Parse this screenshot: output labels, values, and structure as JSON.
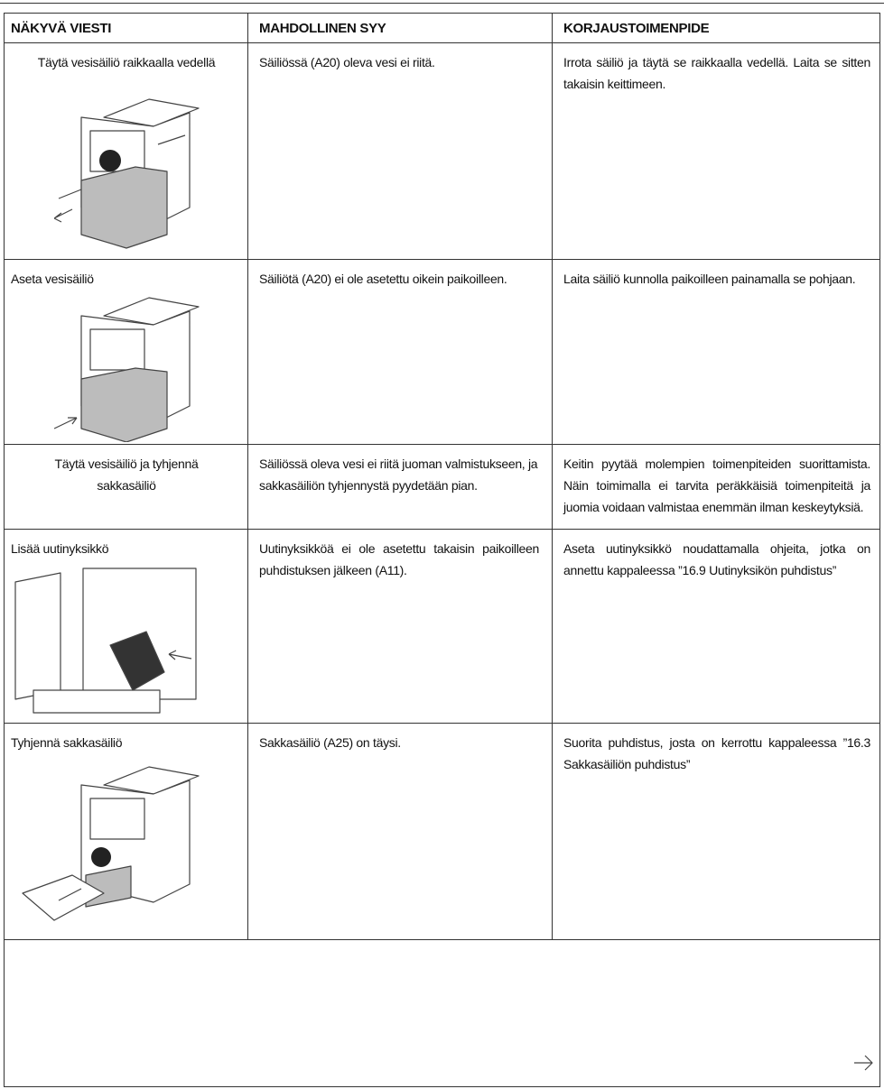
{
  "table": {
    "header": [
      "NÄKYVÄ VIESTI",
      "MAHDOLLINEN SYY",
      "KORJAUSTOIMENPIDE"
    ],
    "rows": [
      [
        "Täytä vesisäiliö raikkaalla vedellä",
        "Säiliössä (A20) oleva vesi ei riitä.",
        "Irrota säiliö ja täytä se raikkaalla vedellä. Laita se sitten takaisin keittimeen."
      ],
      [
        "Aseta vesisäiliö",
        "Säiliötä (A20) ei ole asetettu oikein paikoilleen.",
        "Laita säiliö kunnolla paikoilleen painamalla se pohjaan."
      ],
      [
        "Täytä vesisäiliö ja tyhjennä sakkasäiliö",
        "Säiliössä oleva vesi ei riitä juoman valmistukseen, ja sakkasäiliön tyhjennystä pyydetään pian.",
        "Keitin pyytää molempien toimenpiteiden suorittamista. Näin toimimalla ei tarvita peräkkäisiä toimenpiteitä ja juomia voidaan valmistaa enemmän ilman keskeytyksiä."
      ],
      [
        "Lisää uutinyksikkö",
        "Uutinyksikköä ei ole asetettu takaisin paikoilleen puhdistuksen jälkeen (A11).",
        "Aseta uutinyksikkö noudattamalla ohjeita, jotka on annettu kappaleessa ”16.9 Uutinyksikön puhdistus”"
      ],
      [
        "Tyhjennä sakkasäiliö",
        "Sakkasäiliö (A25) on täysi.",
        "Suorita puhdistus, josta on kerrottu kappaleessa ”16.3 Sakkasäiliön puhdistus”"
      ]
    ]
  }
}
